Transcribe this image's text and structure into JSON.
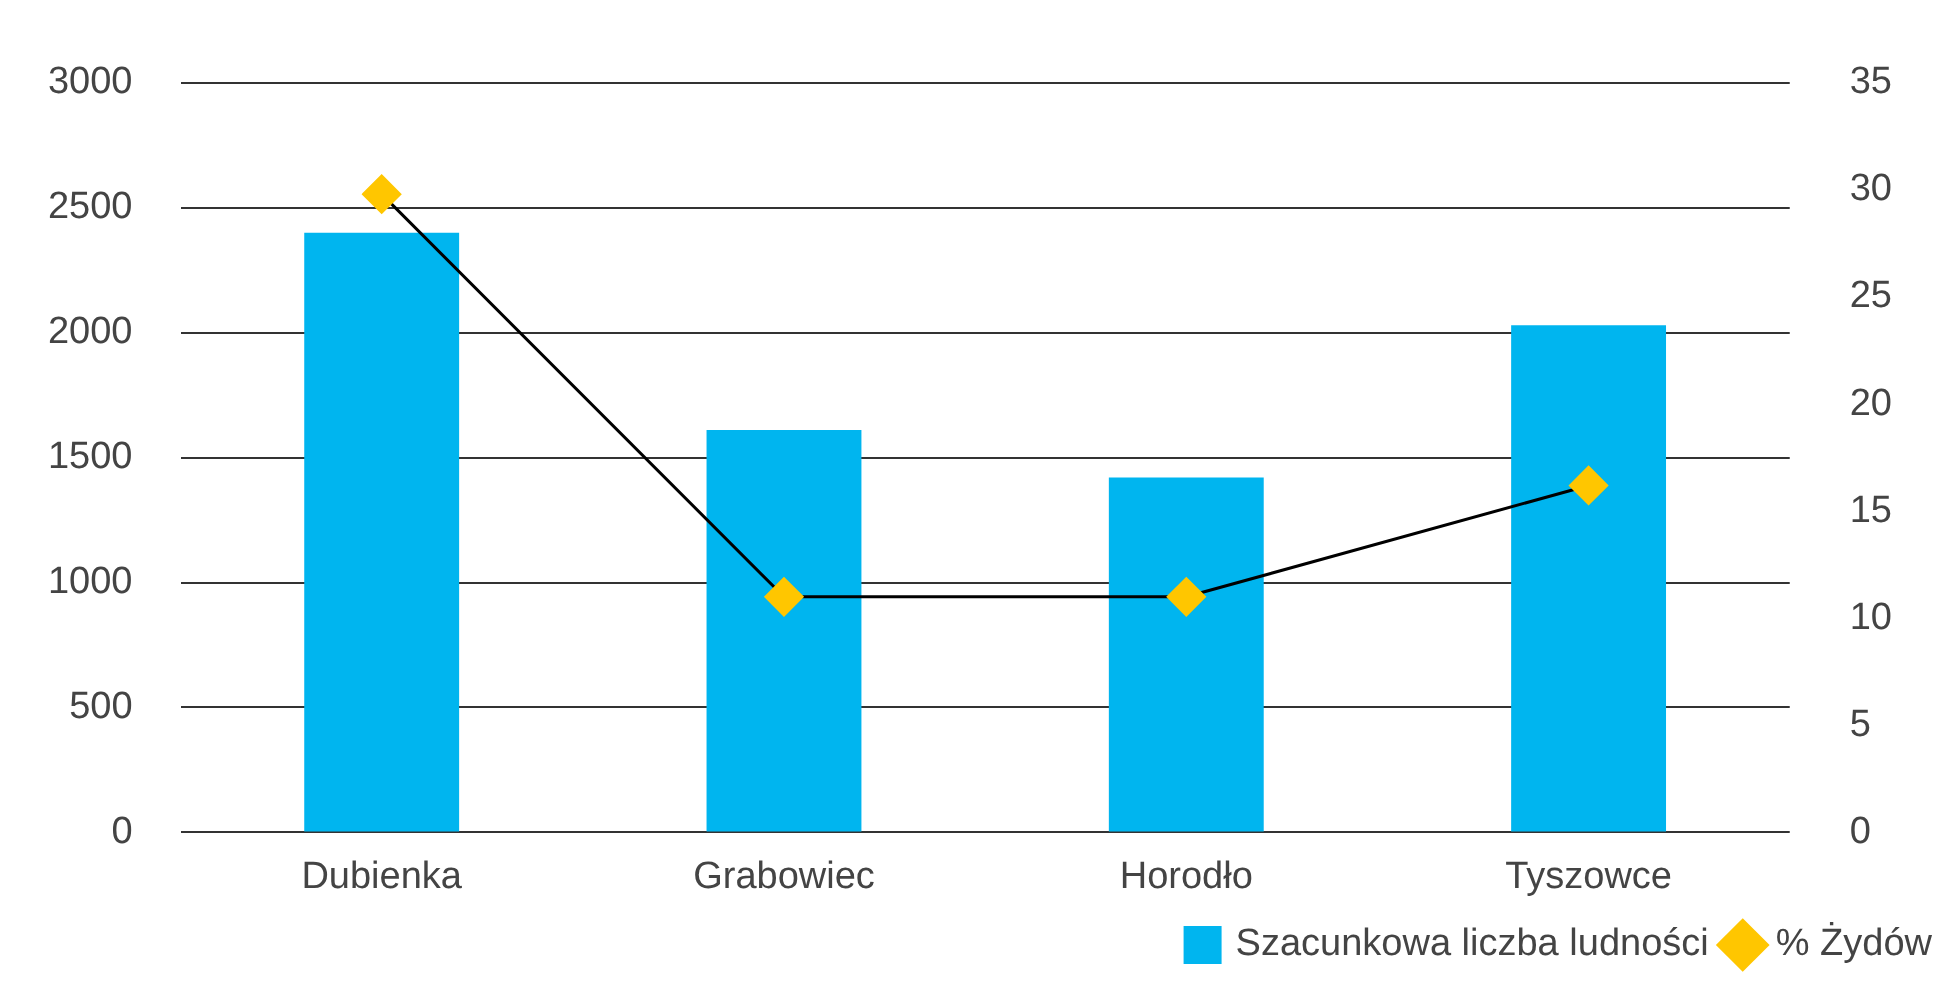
{
  "chart_data": {
    "type": "bar",
    "categories": [
      "Dubienka",
      "Grabowiec",
      "Horodło",
      "Tyszowce"
    ],
    "series": [
      {
        "name": "Szacunkowa liczba ludności",
        "color": "#00b5ef",
        "values": [
          2400,
          1610,
          1420,
          2030
        ]
      },
      {
        "name": "% Żydów",
        "type": "line",
        "axis": "y2",
        "color": "#000000",
        "marker": "diamond",
        "colors": [
          "#ffc600",
          "#ffc600",
          "#ffc600",
          "#ffc600"
        ],
        "values": [
          29.8,
          11,
          11,
          16.2
        ]
      }
    ],
    "ylim": [
      0,
      3000
    ],
    "yticks": [
      0,
      500,
      1000,
      1500,
      2000,
      2500,
      3000
    ],
    "y2lim": [
      0,
      35
    ],
    "y2ticks": [
      0,
      5,
      10,
      15,
      20,
      25,
      30,
      35
    ],
    "grid": "y",
    "legend": "bottom right"
  }
}
